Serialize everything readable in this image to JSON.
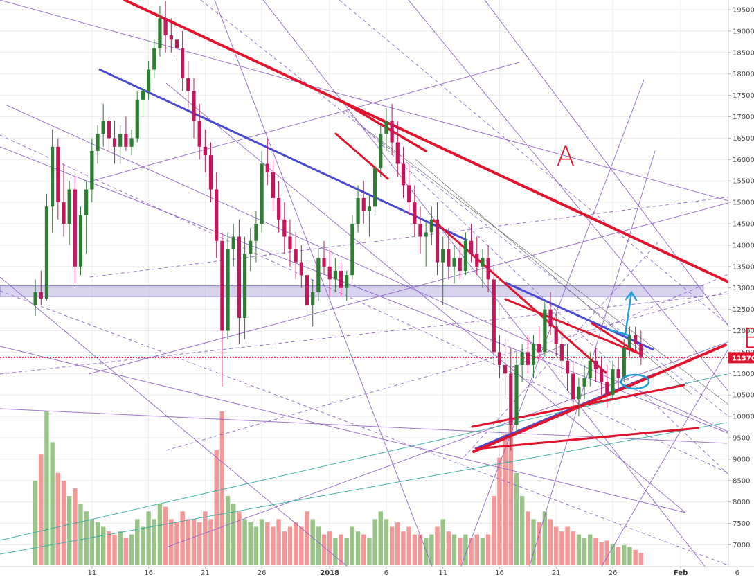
{
  "chart_data": {
    "type": "candlestick",
    "title": "",
    "y_axis": {
      "ticks": [
        7000,
        7500,
        8000,
        8500,
        9000,
        9500,
        10000,
        10500,
        11000,
        11500,
        12000,
        12500,
        13000,
        13500,
        14000,
        14500,
        15000,
        15500,
        16000,
        16500,
        17000,
        17500,
        18000,
        18500,
        19000,
        19500
      ],
      "tick_labels": [
        "7000",
        "7500",
        "8000",
        "8500",
        "9000",
        "9500",
        "10000",
        "10500",
        "11000",
        "11500",
        "12000",
        "12500",
        "13000",
        "13500",
        "14000",
        "14500",
        "15000",
        "15500",
        "16000",
        "16500",
        "17000",
        "17500",
        "18000",
        "18500",
        "19000",
        "19500"
      ],
      "range": [
        6500,
        19650
      ],
      "position": "right"
    },
    "x_axis": {
      "tick_labels": [
        {
          "label": "11",
          "day": 11,
          "bold": false
        },
        {
          "label": "16",
          "day": 16,
          "bold": false
        },
        {
          "label": "21",
          "day": 21,
          "bold": false
        },
        {
          "label": "26",
          "day": 26,
          "bold": false
        },
        {
          "label": "2018",
          "day": 32,
          "bold": true
        },
        {
          "label": "6",
          "day": 37,
          "bold": false
        },
        {
          "label": "11",
          "day": 42,
          "bold": false
        },
        {
          "label": "16",
          "day": 47,
          "bold": false
        },
        {
          "label": "21",
          "day": 52,
          "bold": false
        },
        {
          "label": "26",
          "day": 57,
          "bold": false
        },
        {
          "label": "Feb",
          "day": 63,
          "bold": true
        },
        {
          "label": "6",
          "day": 68,
          "bold": false
        }
      ],
      "range_days": [
        6,
        70
      ],
      "note": "day index counts from December 1, 2017 (day 32 = January 1, 2018)"
    },
    "grid": true,
    "current_price": {
      "value": 11370,
      "label": "11370",
      "color": "#e0152d"
    },
    "support_zone": {
      "low": 12800,
      "high": 13050
    },
    "candles": [
      [
        6.0,
        12600,
        13200,
        12350,
        12900
      ],
      [
        6.5,
        12900,
        13400,
        12600,
        12750
      ],
      [
        7.0,
        12750,
        15200,
        12700,
        14900
      ],
      [
        7.5,
        14900,
        16700,
        14300,
        16300
      ],
      [
        8.0,
        16300,
        16500,
        14600,
        15000
      ],
      [
        8.5,
        15000,
        15900,
        14200,
        14500
      ],
      [
        9.0,
        14500,
        15500,
        14000,
        15300
      ],
      [
        9.5,
        15300,
        15600,
        13100,
        13500
      ],
      [
        10.0,
        13500,
        14900,
        13300,
        14700
      ],
      [
        10.5,
        14700,
        15500,
        13800,
        15300
      ],
      [
        11.0,
        15300,
        16500,
        15000,
        16200
      ],
      [
        11.5,
        16200,
        16800,
        15900,
        16600
      ],
      [
        12.0,
        16600,
        17300,
        16300,
        16900
      ],
      [
        12.5,
        16900,
        17000,
        16200,
        16500
      ],
      [
        13.0,
        16500,
        16900,
        15900,
        16300
      ],
      [
        13.5,
        16300,
        16800,
        15900,
        16600
      ],
      [
        14.0,
        16600,
        17000,
        16200,
        16300
      ],
      [
        14.5,
        16300,
        16700,
        16100,
        16500
      ],
      [
        15.0,
        16500,
        17600,
        16400,
        17400
      ],
      [
        15.5,
        17400,
        17700,
        17000,
        17600
      ],
      [
        16.0,
        17600,
        18300,
        17400,
        18100
      ],
      [
        16.5,
        18100,
        18800,
        17900,
        18600
      ],
      [
        17.0,
        18600,
        19600,
        18400,
        19300
      ],
      [
        17.5,
        19300,
        19700,
        18500,
        18900
      ],
      [
        18.0,
        18900,
        19300,
        18500,
        18800
      ],
      [
        18.5,
        18800,
        19100,
        18400,
        18600
      ],
      [
        19.0,
        18600,
        19000,
        17600,
        17900
      ],
      [
        19.5,
        17900,
        18300,
        17200,
        17600
      ],
      [
        20.0,
        17600,
        17900,
        16500,
        16900
      ],
      [
        20.5,
        16900,
        17300,
        16000,
        16300
      ],
      [
        21.0,
        16300,
        16700,
        15700,
        16100
      ],
      [
        21.5,
        16100,
        16400,
        15000,
        15300
      ],
      [
        22.0,
        15300,
        15700,
        13700,
        14100
      ],
      [
        22.5,
        14100,
        14300,
        10700,
        12000
      ],
      [
        23.0,
        12000,
        14300,
        11800,
        13900
      ],
      [
        23.5,
        13900,
        14500,
        13500,
        14200
      ],
      [
        24.0,
        14200,
        14600,
        11700,
        12300
      ],
      [
        24.5,
        12300,
        14200,
        11800,
        13800
      ],
      [
        25.0,
        13800,
        14400,
        13400,
        14100
      ],
      [
        25.5,
        14100,
        14800,
        13600,
        14500
      ],
      [
        26.0,
        14500,
        16200,
        14300,
        15900
      ],
      [
        26.5,
        15900,
        16500,
        15400,
        15700
      ],
      [
        27.0,
        15700,
        16000,
        14800,
        15100
      ],
      [
        27.5,
        15100,
        15500,
        14300,
        14600
      ],
      [
        28.0,
        14600,
        15000,
        13800,
        14200
      ],
      [
        28.5,
        14200,
        14600,
        13500,
        13900
      ],
      [
        29.0,
        13900,
        14300,
        13200,
        13600
      ],
      [
        29.5,
        13600,
        14000,
        13000,
        13300
      ],
      [
        30.0,
        13300,
        13600,
        12300,
        12600
      ],
      [
        30.5,
        12600,
        13200,
        12100,
        12900
      ],
      [
        31.0,
        12900,
        13900,
        12700,
        13700
      ],
      [
        31.5,
        13700,
        14100,
        13300,
        13500
      ],
      [
        32.0,
        13500,
        13900,
        12800,
        13200
      ],
      [
        32.5,
        13200,
        13700,
        12900,
        13400
      ],
      [
        33.0,
        13400,
        13600,
        12800,
        13000
      ],
      [
        33.5,
        13000,
        13400,
        12700,
        13300
      ],
      [
        34.0,
        13300,
        14700,
        13200,
        14500
      ],
      [
        34.5,
        14500,
        15400,
        14300,
        15100
      ],
      [
        35.0,
        15100,
        15500,
        14500,
        14800
      ],
      [
        35.5,
        14800,
        15200,
        14200,
        14900
      ],
      [
        36.0,
        14900,
        16000,
        14700,
        15800
      ],
      [
        36.5,
        15800,
        16800,
        15600,
        16600
      ],
      [
        37.0,
        16600,
        17200,
        16200,
        16900
      ],
      [
        37.5,
        16900,
        17300,
        16100,
        16400
      ],
      [
        38.0,
        16400,
        16900,
        15600,
        15900
      ],
      [
        38.5,
        15900,
        16300,
        15100,
        15400
      ],
      [
        39.0,
        15400,
        15900,
        14700,
        15000
      ],
      [
        39.5,
        15000,
        15400,
        14200,
        14500
      ],
      [
        40.0,
        14500,
        14900,
        13800,
        14200
      ],
      [
        40.5,
        14200,
        14600,
        13500,
        14300
      ],
      [
        41.0,
        14300,
        14900,
        14000,
        14600
      ],
      [
        41.5,
        14600,
        15000,
        13300,
        13600
      ],
      [
        42.0,
        13600,
        14200,
        12600,
        13900
      ],
      [
        42.5,
        13900,
        14400,
        13200,
        13500
      ],
      [
        43.0,
        13500,
        14000,
        13100,
        13700
      ],
      [
        43.5,
        13700,
        14100,
        13200,
        13400
      ],
      [
        44.0,
        13400,
        14300,
        13300,
        14100
      ],
      [
        44.5,
        14100,
        14500,
        13600,
        13800
      ],
      [
        45.0,
        13800,
        14200,
        13300,
        13500
      ],
      [
        45.5,
        13500,
        13900,
        13000,
        13700
      ],
      [
        46.0,
        13700,
        14000,
        12900,
        13200
      ],
      [
        46.5,
        13200,
        13500,
        11200,
        11500
      ],
      [
        47.0,
        11500,
        11900,
        10900,
        11200
      ],
      [
        47.5,
        11200,
        11800,
        10500,
        11000
      ],
      [
        48.0,
        11000,
        11600,
        9200,
        9800
      ],
      [
        48.5,
        9800,
        11500,
        9600,
        11200
      ],
      [
        49.0,
        11200,
        11700,
        10800,
        11500
      ],
      [
        49.5,
        11500,
        11900,
        11000,
        11200
      ],
      [
        50.0,
        11200,
        11900,
        10900,
        11700
      ],
      [
        50.5,
        11700,
        12100,
        11300,
        11500
      ],
      [
        51.0,
        11500,
        12700,
        11400,
        12500
      ],
      [
        51.5,
        12500,
        12900,
        11900,
        12100
      ],
      [
        52.0,
        12100,
        12400,
        11400,
        11700
      ],
      [
        52.5,
        11700,
        12000,
        11000,
        11300
      ],
      [
        53.0,
        11300,
        11700,
        10600,
        11000
      ],
      [
        53.5,
        11000,
        11300,
        10100,
        10400
      ],
      [
        54.0,
        10400,
        10900,
        10000,
        10700
      ],
      [
        54.5,
        10700,
        11200,
        10400,
        10900
      ],
      [
        55.0,
        10900,
        11500,
        10700,
        11300
      ],
      [
        55.5,
        11300,
        11600,
        10800,
        11100
      ],
      [
        56.0,
        11100,
        11400,
        10500,
        10800
      ],
      [
        56.5,
        10800,
        11200,
        10200,
        10500
      ],
      [
        57.0,
        10500,
        11300,
        10400,
        11100
      ],
      [
        57.5,
        11100,
        11400,
        10600,
        10900
      ],
      [
        58.0,
        10900,
        11800,
        10800,
        11600
      ],
      [
        58.5,
        11600,
        12100,
        11400,
        11900
      ],
      [
        59.0,
        11900,
        12100,
        11500,
        11700
      ],
      [
        59.5,
        11700,
        12000,
        11200,
        11370
      ]
    ],
    "volumes": [
      [
        6.0,
        0.55
      ],
      [
        6.5,
        0.72
      ],
      [
        7.0,
        1.0
      ],
      [
        7.5,
        0.8
      ],
      [
        8.0,
        0.6
      ],
      [
        8.5,
        0.55
      ],
      [
        9.0,
        0.45
      ],
      [
        9.5,
        0.5
      ],
      [
        10.0,
        0.4
      ],
      [
        10.5,
        0.35
      ],
      [
        11.0,
        0.3
      ],
      [
        11.5,
        0.28
      ],
      [
        12.0,
        0.25
      ],
      [
        12.5,
        0.22
      ],
      [
        13.0,
        0.2
      ],
      [
        13.5,
        0.22
      ],
      [
        14.0,
        0.18
      ],
      [
        14.5,
        0.2
      ],
      [
        15.0,
        0.3
      ],
      [
        15.5,
        0.25
      ],
      [
        16.0,
        0.35
      ],
      [
        16.5,
        0.3
      ],
      [
        17.0,
        0.4
      ],
      [
        17.5,
        0.38
      ],
      [
        18.0,
        0.3
      ],
      [
        18.5,
        0.28
      ],
      [
        19.0,
        0.35
      ],
      [
        19.5,
        0.3
      ],
      [
        20.0,
        0.3
      ],
      [
        20.5,
        0.28
      ],
      [
        21.0,
        0.35
      ],
      [
        21.5,
        0.3
      ],
      [
        22.0,
        0.75
      ],
      [
        22.5,
        1.0
      ],
      [
        23.0,
        0.45
      ],
      [
        23.5,
        0.4
      ],
      [
        24.0,
        0.35
      ],
      [
        24.5,
        0.3
      ],
      [
        25.0,
        0.28
      ],
      [
        25.5,
        0.25
      ],
      [
        26.0,
        0.3
      ],
      [
        26.5,
        0.28
      ],
      [
        27.0,
        0.25
      ],
      [
        27.5,
        0.3
      ],
      [
        28.0,
        0.22
      ],
      [
        28.5,
        0.25
      ],
      [
        29.0,
        0.28
      ],
      [
        29.5,
        0.25
      ],
      [
        30.0,
        0.35
      ],
      [
        30.5,
        0.3
      ],
      [
        31.0,
        0.25
      ],
      [
        31.5,
        0.2
      ],
      [
        32.0,
        0.22
      ],
      [
        32.5,
        0.18
      ],
      [
        33.0,
        0.2
      ],
      [
        33.5,
        0.18
      ],
      [
        34.0,
        0.25
      ],
      [
        34.5,
        0.22
      ],
      [
        35.0,
        0.2
      ],
      [
        35.5,
        0.18
      ],
      [
        36.0,
        0.3
      ],
      [
        36.5,
        0.35
      ],
      [
        37.0,
        0.3
      ],
      [
        37.5,
        0.25
      ],
      [
        38.0,
        0.28
      ],
      [
        38.5,
        0.22
      ],
      [
        39.0,
        0.25
      ],
      [
        39.5,
        0.2
      ],
      [
        40.0,
        0.2
      ],
      [
        40.5,
        0.18
      ],
      [
        41.0,
        0.2
      ],
      [
        41.5,
        0.25
      ],
      [
        42.0,
        0.3
      ],
      [
        42.5,
        0.22
      ],
      [
        43.0,
        0.2
      ],
      [
        43.5,
        0.18
      ],
      [
        44.0,
        0.2
      ],
      [
        44.5,
        0.18
      ],
      [
        45.0,
        0.2
      ],
      [
        45.5,
        0.18
      ],
      [
        46.0,
        0.2
      ],
      [
        46.5,
        0.45
      ],
      [
        47.0,
        0.7
      ],
      [
        47.5,
        0.85
      ],
      [
        48.0,
        0.95
      ],
      [
        48.5,
        0.6
      ],
      [
        49.0,
        0.45
      ],
      [
        49.5,
        0.35
      ],
      [
        50.0,
        0.3
      ],
      [
        50.5,
        0.28
      ],
      [
        51.0,
        0.35
      ],
      [
        51.5,
        0.3
      ],
      [
        52.0,
        0.25
      ],
      [
        52.5,
        0.22
      ],
      [
        53.0,
        0.25
      ],
      [
        53.5,
        0.22
      ],
      [
        54.0,
        0.2
      ],
      [
        54.5,
        0.18
      ],
      [
        55.0,
        0.2
      ],
      [
        55.5,
        0.18
      ],
      [
        56.0,
        0.15
      ],
      [
        56.5,
        0.16
      ],
      [
        57.0,
        0.14
      ],
      [
        57.5,
        0.12
      ],
      [
        58.0,
        0.13
      ],
      [
        58.5,
        0.12
      ],
      [
        59.0,
        0.1
      ],
      [
        59.5,
        0.08
      ]
    ],
    "annotations": [
      {
        "text": "A",
        "day": 52.0,
        "price": 15850,
        "color": "#e0152d"
      },
      {
        "text": "B",
        "day": 68.5,
        "price": 11600,
        "color": "#e0152d"
      }
    ],
    "colors": {
      "bull": "#2e7d32",
      "bear": "#c2185b",
      "bull_volume": "#8dbf7a",
      "bear_volume": "#f28c8c",
      "trend_red": "#e0152d",
      "trend_blue": "#4a4ad0",
      "trend_purple": "#8a5cc4",
      "trend_teal": "#26a69a",
      "marker_cyan": "#1e9fd8",
      "zone_fill": "#b8b0e0"
    }
  }
}
